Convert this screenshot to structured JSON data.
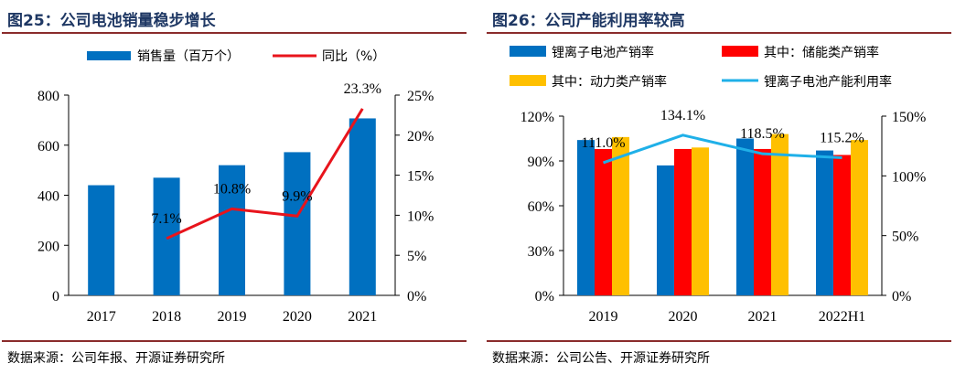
{
  "charts": [
    {
      "title": "图25：公司电池销量稳步增长",
      "source": "数据来源：公司年报、开源证券研究所",
      "legend": [
        "销售量（百万个）",
        "同比（%）"
      ],
      "colors": {
        "bar": "#0070c0",
        "line": "#e8141c"
      }
    },
    {
      "title": "图26：公司产能利用率较高",
      "source": "数据来源：公司公告、开源证券研究所",
      "legend": [
        "锂离子电池产销率",
        "其中：储能类产销率",
        "其中：动力类产销率",
        "锂离子电池产能利用率"
      ],
      "colors": {
        "s1": "#0070c0",
        "s2": "#ff0000",
        "s3": "#ffc000",
        "line": "#1fb0e8"
      }
    }
  ],
  "chart_data": [
    {
      "type": "bar",
      "categories": [
        "2017",
        "2018",
        "2019",
        "2020",
        "2021"
      ],
      "series": [
        {
          "name": "销售量（百万个）",
          "axis": "left",
          "type": "bar",
          "values": [
            440,
            470,
            520,
            572,
            707
          ]
        },
        {
          "name": "同比（%）",
          "axis": "right",
          "type": "line",
          "values": [
            null,
            7.1,
            10.8,
            9.9,
            23.3
          ],
          "labels": [
            "",
            "7.1%",
            "10.8%",
            "9.9%",
            "23.3%"
          ]
        }
      ],
      "ylim_left": [
        0,
        800
      ],
      "yticks_left": [
        "0",
        "200",
        "400",
        "600",
        "800"
      ],
      "ylim_right": [
        0,
        25
      ],
      "yticks_right": [
        "0%",
        "5%",
        "10%",
        "15%",
        "20%",
        "25%"
      ],
      "legend_position": "top"
    },
    {
      "type": "bar",
      "categories": [
        "2019",
        "2020",
        "2021",
        "2022H1"
      ],
      "series": [
        {
          "name": "锂离子电池产销率",
          "axis": "left",
          "type": "bar",
          "values": [
            104,
            87,
            105,
            97
          ]
        },
        {
          "name": "其中：储能类产销率",
          "axis": "left",
          "type": "bar",
          "values": [
            98,
            98,
            98,
            94
          ]
        },
        {
          "name": "其中：动力类产销率",
          "axis": "left",
          "type": "bar",
          "values": [
            106,
            99,
            108,
            104
          ]
        },
        {
          "name": "锂离子电池产能利用率",
          "axis": "right",
          "type": "line",
          "values": [
            111.0,
            134.1,
            118.5,
            115.2
          ],
          "labels": [
            "111.0%",
            "134.1%",
            "118.5%",
            "115.2%"
          ]
        }
      ],
      "ylim_left": [
        0,
        120
      ],
      "yticks_left": [
        "0%",
        "30%",
        "60%",
        "90%",
        "120%"
      ],
      "ylim_right": [
        0,
        150
      ],
      "yticks_right": [
        "0%",
        "50%",
        "100%",
        "150%"
      ],
      "legend_position": "top"
    }
  ]
}
